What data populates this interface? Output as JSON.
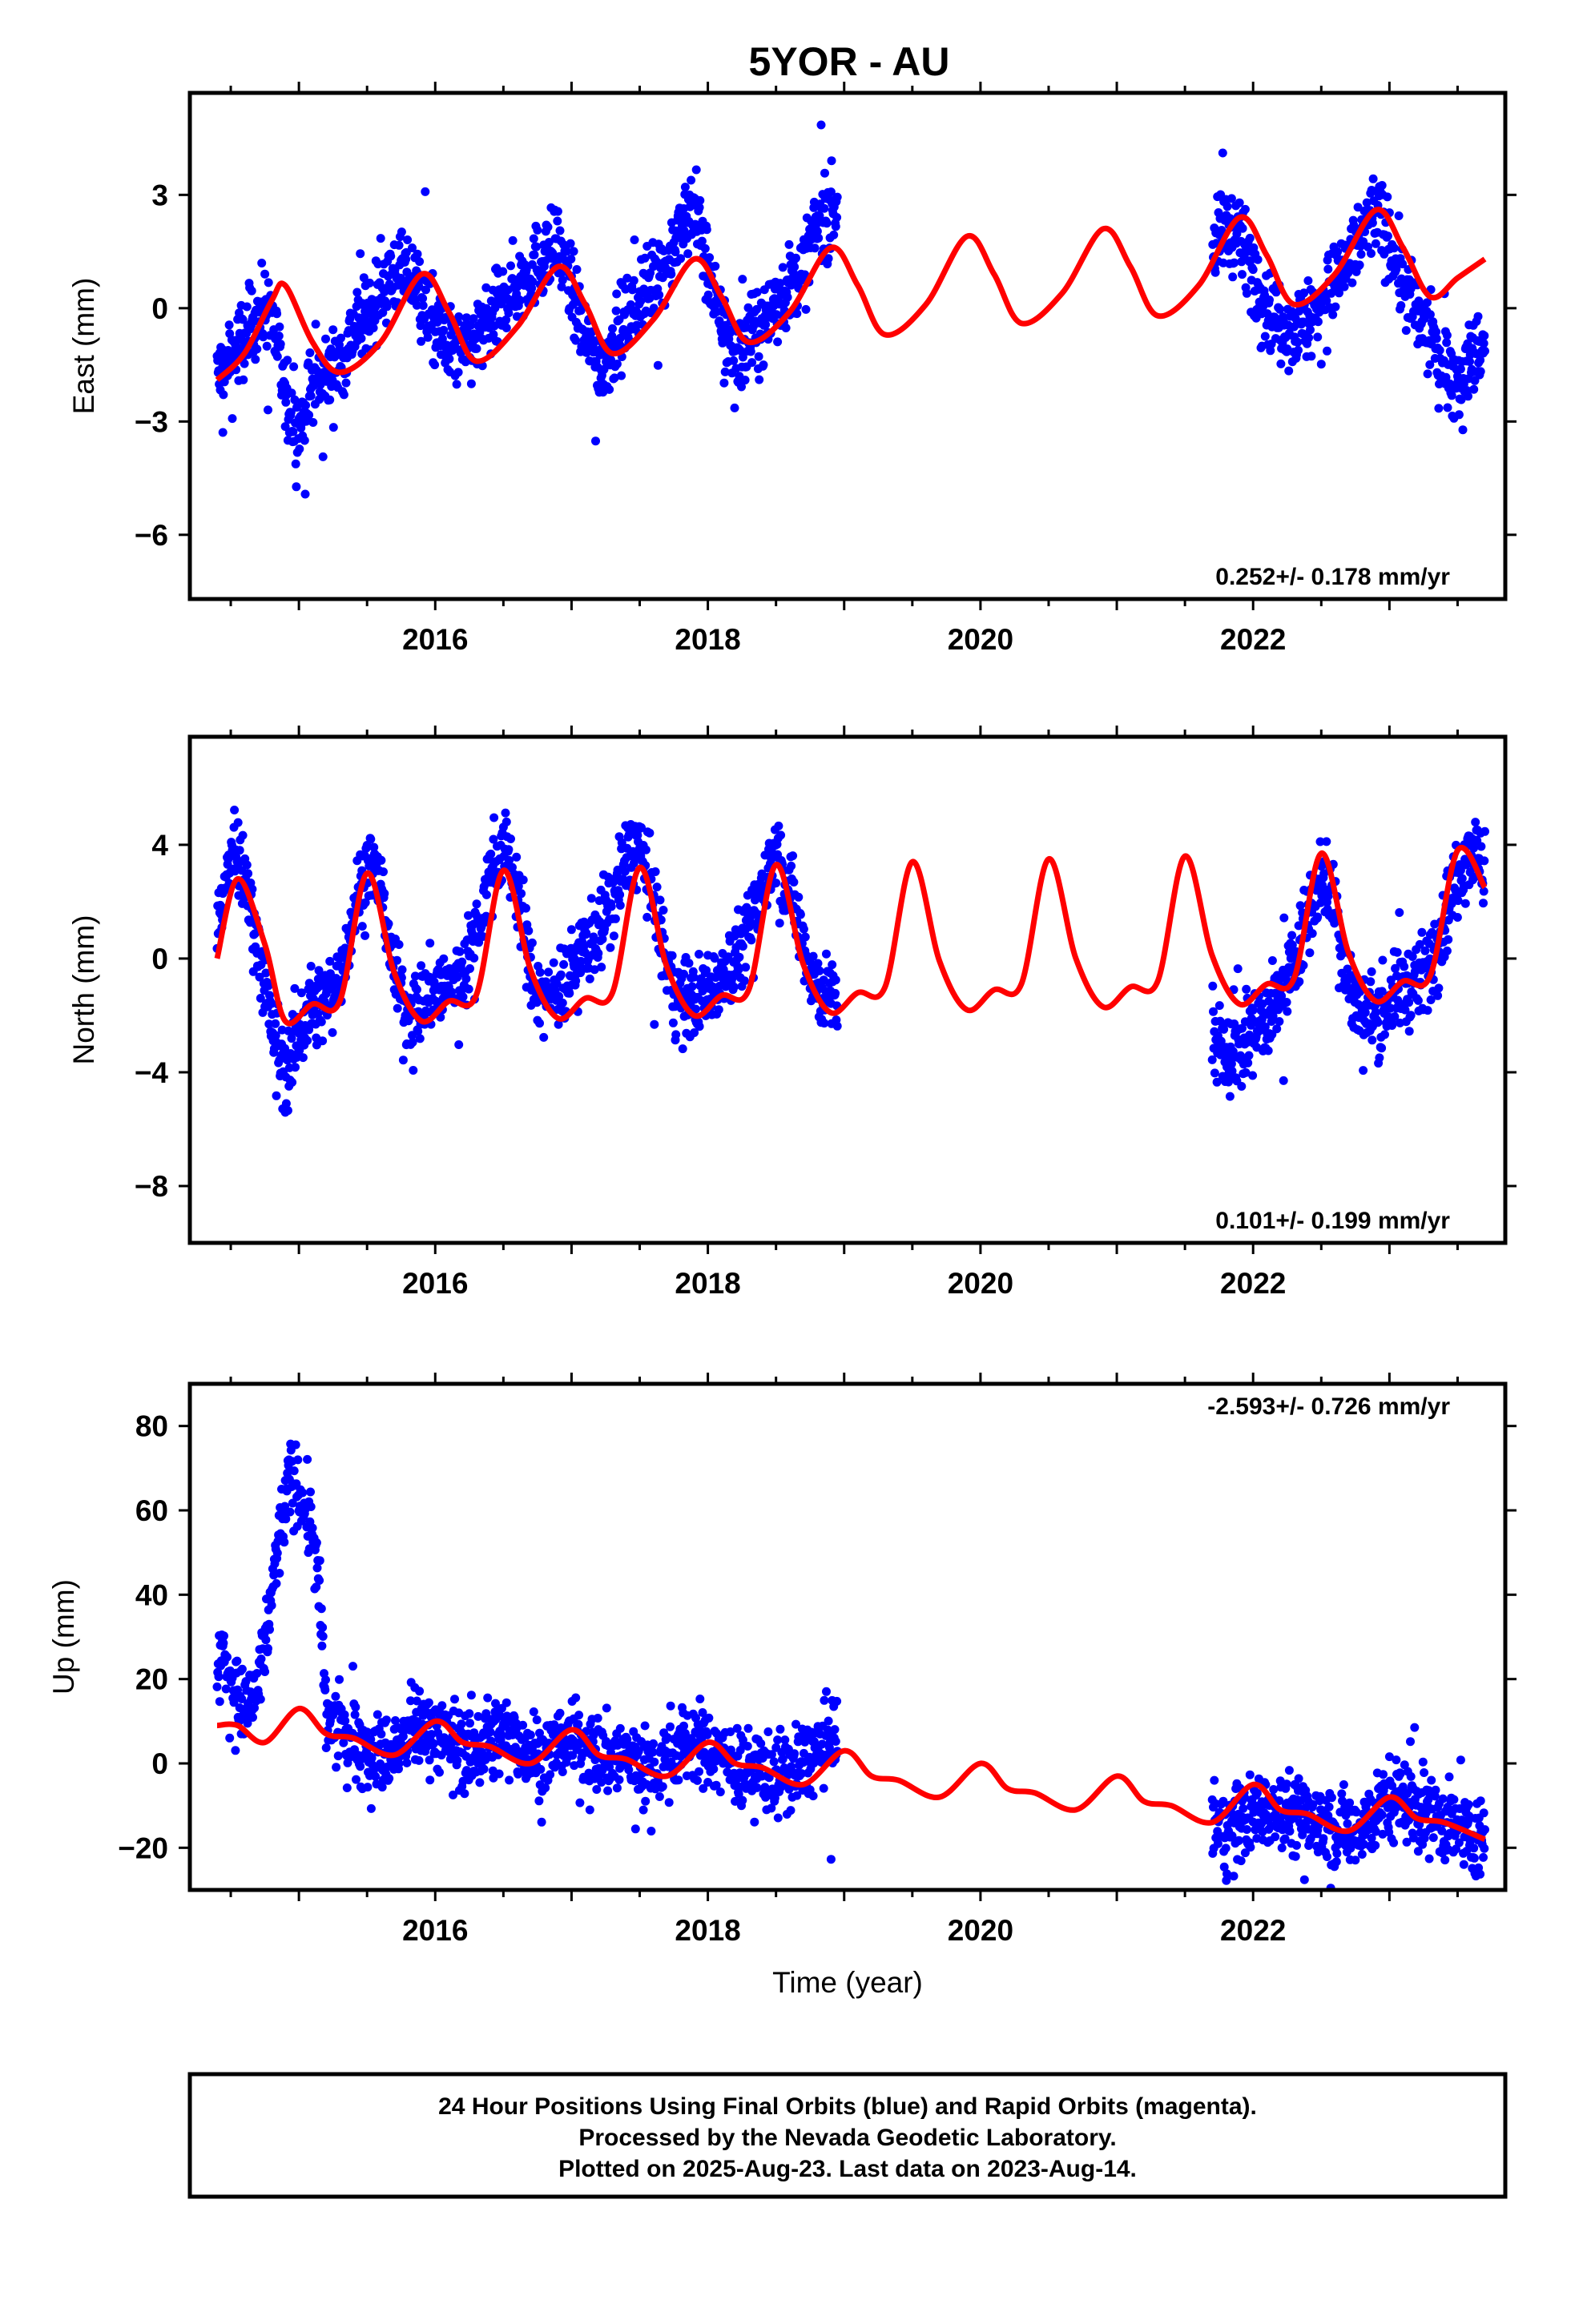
{
  "figure": {
    "title": "5YOR - AU",
    "caption": [
      "24 Hour Positions Using Final Orbits (blue) and Rapid Orbits (magenta).",
      "Processed by the Nevada Geodetic Laboratory.",
      "Plotted on 2025-Aug-23. Last data on 2023-Aug-14."
    ]
  },
  "chart_data": [
    {
      "type": "scatter",
      "component": "East",
      "ylabel": "East (mm)",
      "xlabel": "",
      "rate_text": "0.252+/- 0.178 mm/yr",
      "rate_position": "bottom-right",
      "xlim": [
        2014.2,
        2023.85
      ],
      "ylim": [
        -7.7,
        5.7
      ],
      "x_ticks": [
        2016,
        2018,
        2020,
        2022
      ],
      "y_ticks": [
        -6,
        -3,
        0,
        3
      ],
      "grid": false,
      "series": [
        {
          "role": "data",
          "color": "#0000ff",
          "segments": [
            {
              "x": [
                2014.4,
                2014.5,
                2014.6,
                2014.7,
                2014.8,
                2014.9,
                2015.0,
                2015.1,
                2015.2,
                2015.3,
                2015.4,
                2015.5,
                2015.6,
                2015.7,
                2015.8,
                2015.9,
                2016.0,
                2016.1,
                2016.2,
                2016.3,
                2016.4,
                2016.5,
                2016.6,
                2016.7,
                2016.8,
                2016.9,
                2017.0,
                2017.1,
                2017.2,
                2017.3,
                2017.4,
                2017.5,
                2017.6,
                2017.7,
                2017.8,
                2017.9,
                2018.0,
                2018.1,
                2018.2,
                2018.3,
                2018.4,
                2018.5,
                2018.6,
                2018.7,
                2018.8,
                2018.95
              ],
              "y": [
                -1.8,
                -1.3,
                -0.8,
                -0.1,
                0.0,
                -2.5,
                -3.2,
                -2.0,
                -1.8,
                -1.5,
                -0.6,
                -0.2,
                0.5,
                0.9,
                0.9,
                0.3,
                -0.5,
                -1.0,
                -1.2,
                -0.8,
                -0.4,
                0.2,
                0.6,
                1.0,
                1.4,
                1.6,
                0.5,
                -0.8,
                -1.5,
                -1.0,
                -0.4,
                0.2,
                0.7,
                1.2,
                2.0,
                2.8,
                1.0,
                -0.5,
                -1.2,
                -0.8,
                -0.5,
                0.2,
                0.6,
                1.0,
                2.2,
                2.8
              ]
            },
            {
              "x": [
                2021.7,
                2021.8,
                2021.9,
                2022.0,
                2022.1,
                2022.2,
                2022.3,
                2022.4,
                2022.5,
                2022.6,
                2022.7,
                2022.8,
                2022.9,
                2023.0,
                2023.1,
                2023.2,
                2023.3,
                2023.4,
                2023.5,
                2023.6,
                2023.7
              ],
              "y": [
                1.5,
                2.2,
                1.8,
                1.0,
                0.2,
                -0.3,
                -0.5,
                -0.4,
                0.2,
                0.6,
                1.2,
                2.0,
                2.6,
                1.8,
                0.6,
                -0.2,
                -0.8,
                -1.5,
                -1.8,
                -1.4,
                -0.8
              ]
            }
          ]
        },
        {
          "role": "model",
          "color": "#ff0000",
          "x": [
            2014.4,
            2014.6,
            2014.8,
            2014.9,
            2015.1,
            2015.3,
            2015.6,
            2015.9,
            2016.1,
            2016.3,
            2016.6,
            2016.9,
            2017.1,
            2017.3,
            2017.6,
            2017.9,
            2018.1,
            2018.3,
            2018.6,
            2018.9,
            2019.1,
            2019.3,
            2019.6,
            2019.9,
            2020.1,
            2020.3,
            2020.6,
            2020.9,
            2021.1,
            2021.3,
            2021.6,
            2021.9,
            2022.1,
            2022.3,
            2022.6,
            2022.9,
            2023.1,
            2023.3,
            2023.5,
            2023.7
          ],
          "y": [
            -1.9,
            -1.2,
            0.2,
            0.6,
            -0.9,
            -1.7,
            -0.9,
            0.9,
            -0.1,
            -1.4,
            -0.5,
            1.1,
            0.1,
            -1.2,
            -0.3,
            1.3,
            0.3,
            -0.9,
            -0.1,
            1.6,
            0.6,
            -0.7,
            0.1,
            1.9,
            0.9,
            -0.4,
            0.4,
            2.1,
            1.1,
            -0.2,
            0.6,
            2.4,
            1.4,
            0.1,
            0.9,
            2.6,
            1.6,
            0.3,
            0.8,
            1.3
          ]
        }
      ]
    },
    {
      "type": "scatter",
      "component": "North",
      "ylabel": "North (mm)",
      "xlabel": "",
      "rate_text": "0.101+/- 0.199 mm/yr",
      "rate_position": "bottom-right",
      "xlim": [
        2014.2,
        2023.85
      ],
      "ylim": [
        -10.0,
        7.8
      ],
      "x_ticks": [
        2016,
        2018,
        2020,
        2022
      ],
      "y_ticks": [
        -8,
        -4,
        0,
        4
      ],
      "grid": false,
      "series": [
        {
          "role": "data",
          "color": "#0000ff",
          "segments": [
            {
              "x": [
                2014.4,
                2014.5,
                2014.6,
                2014.7,
                2014.8,
                2014.9,
                2015.0,
                2015.1,
                2015.2,
                2015.3,
                2015.4,
                2015.5,
                2015.6,
                2015.7,
                2015.8,
                2015.9,
                2016.0,
                2016.1,
                2016.2,
                2016.3,
                2016.4,
                2016.5,
                2016.6,
                2016.7,
                2016.8,
                2016.9,
                2017.0,
                2017.1,
                2017.2,
                2017.3,
                2017.4,
                2017.5,
                2017.6,
                2017.7,
                2017.8,
                2017.9,
                2018.0,
                2018.1,
                2018.2,
                2018.3,
                2018.4,
                2018.5,
                2018.6,
                2018.7,
                2018.8,
                2018.95
              ],
              "y": [
                1.0,
                3.5,
                3.0,
                0.5,
                -2.5,
                -4.0,
                -2.5,
                -1.8,
                -1.5,
                -0.5,
                1.5,
                3.5,
                2.5,
                -0.5,
                -2.0,
                -1.5,
                -1.0,
                -1.0,
                -0.5,
                1.0,
                3.0,
                4.0,
                2.5,
                -0.5,
                -1.5,
                -1.0,
                -0.5,
                0.5,
                1.0,
                2.0,
                3.5,
                4.0,
                2.0,
                -0.5,
                -1.5,
                -1.5,
                -1.0,
                -0.5,
                0.0,
                1.0,
                2.5,
                3.8,
                2.5,
                0.5,
                -1.0,
                -1.5
              ]
            },
            {
              "x": [
                2021.7,
                2021.8,
                2021.9,
                2022.0,
                2022.1,
                2022.2,
                2022.3,
                2022.4,
                2022.5,
                2022.6,
                2022.7,
                2022.8,
                2022.9,
                2023.0,
                2023.1,
                2023.2,
                2023.3,
                2023.4,
                2023.5,
                2023.6,
                2023.7
              ],
              "y": [
                -2.5,
                -3.5,
                -3.0,
                -2.5,
                -2.0,
                -1.5,
                0.0,
                1.5,
                3.0,
                2.0,
                -1.0,
                -2.0,
                -2.0,
                -1.5,
                -1.0,
                -1.0,
                0.0,
                1.5,
                3.0,
                4.0,
                3.0
              ]
            }
          ]
        },
        {
          "role": "model",
          "color": "#ff0000",
          "x": [
            2014.4,
            2014.55,
            2014.75,
            2014.9,
            2015.1,
            2015.3,
            2015.5,
            2015.7,
            2015.9,
            2016.1,
            2016.3,
            2016.5,
            2016.7,
            2016.9,
            2017.1,
            2017.3,
            2017.5,
            2017.7,
            2017.9,
            2018.1,
            2018.3,
            2018.5,
            2018.7,
            2018.9,
            2019.1,
            2019.3,
            2019.5,
            2019.7,
            2019.9,
            2020.1,
            2020.3,
            2020.5,
            2020.7,
            2020.9,
            2021.1,
            2021.3,
            2021.5,
            2021.7,
            2021.9,
            2022.1,
            2022.3,
            2022.5,
            2022.7,
            2022.9,
            2023.1,
            2023.3,
            2023.5,
            2023.7
          ],
          "y": [
            0.0,
            2.8,
            0.5,
            -2.2,
            -1.6,
            -1.5,
            3.0,
            -0.5,
            -2.2,
            -1.5,
            -1.3,
            3.1,
            -0.4,
            -2.1,
            -1.4,
            -1.2,
            3.2,
            -0.3,
            -2.0,
            -1.3,
            -1.1,
            3.3,
            -0.2,
            -1.9,
            -1.2,
            -1.0,
            3.4,
            -0.1,
            -1.8,
            -1.1,
            -0.9,
            3.5,
            0.0,
            -1.7,
            -1.0,
            -0.8,
            3.6,
            0.1,
            -1.6,
            -0.9,
            -0.7,
            3.7,
            0.2,
            -1.5,
            -0.8,
            -0.6,
            3.8,
            2.5
          ]
        }
      ]
    },
    {
      "type": "scatter",
      "component": "Up",
      "ylabel": "Up (mm)",
      "xlabel": "Time (year)",
      "rate_text": "-2.593+/- 0.726 mm/yr",
      "rate_position": "top-right",
      "xlim": [
        2014.2,
        2023.85
      ],
      "ylim": [
        -30,
        90
      ],
      "x_ticks": [
        2016,
        2018,
        2020,
        2022
      ],
      "y_ticks": [
        -20,
        0,
        20,
        40,
        60,
        80
      ],
      "grid": false,
      "series": [
        {
          "role": "data",
          "color": "#0000ff",
          "segments": [
            {
              "x": [
                2014.4,
                2014.45,
                2014.5,
                2014.55,
                2014.6,
                2014.65,
                2014.7,
                2014.75,
                2014.8,
                2014.85,
                2014.9,
                2014.95,
                2015.0,
                2015.05,
                2015.1,
                2015.15,
                2015.2,
                2015.3,
                2015.4,
                2015.5,
                2015.6,
                2015.7,
                2015.8,
                2015.9,
                2016.0,
                2016.1,
                2016.2,
                2016.3,
                2016.4,
                2016.5,
                2016.6,
                2016.7,
                2016.8,
                2016.9,
                2017.0,
                2017.1,
                2017.2,
                2017.3,
                2017.4,
                2017.5,
                2017.6,
                2017.7,
                2017.8,
                2017.9,
                2018.0,
                2018.1,
                2018.2,
                2018.3,
                2018.4,
                2018.5,
                2018.6,
                2018.7,
                2018.8,
                2018.95
              ],
              "y": [
                22,
                27,
                20,
                15,
                12,
                14,
                18,
                28,
                40,
                52,
                62,
                68,
                65,
                60,
                55,
                40,
                10,
                8,
                6,
                4,
                2,
                3,
                6,
                9,
                8,
                5,
                4,
                3,
                5,
                7,
                6,
                3,
                2,
                4,
                6,
                4,
                2,
                1,
                2,
                0,
                -1,
                2,
                4,
                5,
                3,
                2,
                0,
                -2,
                -1,
                -3,
                -2,
                0,
                3,
                6
              ]
            },
            {
              "x": [
                2021.7,
                2021.8,
                2021.9,
                2022.0,
                2022.1,
                2022.2,
                2022.3,
                2022.4,
                2022.5,
                2022.6,
                2022.7,
                2022.8,
                2022.9,
                2023.0,
                2023.1,
                2023.2,
                2023.3,
                2023.4,
                2023.5,
                2023.6,
                2023.7
              ],
              "y": [
                -14,
                -16,
                -15,
                -12,
                -10,
                -11,
                -12,
                -13,
                -14,
                -15,
                -16,
                -14,
                -12,
                -9,
                -8,
                -10,
                -12,
                -14,
                -16,
                -17,
                -18
              ]
            }
          ]
        },
        {
          "role": "model",
          "color": "#ff0000",
          "x": [
            2014.4,
            2014.55,
            2014.75,
            2015.0,
            2015.2,
            2015.4,
            2015.7,
            2016.0,
            2016.2,
            2016.4,
            2016.7,
            2017.0,
            2017.2,
            2017.4,
            2017.7,
            2018.0,
            2018.2,
            2018.4,
            2018.7,
            2019.0,
            2019.2,
            2019.4,
            2019.7,
            2020.0,
            2020.2,
            2020.4,
            2020.7,
            2021.0,
            2021.2,
            2021.4,
            2021.7,
            2022.0,
            2022.2,
            2022.4,
            2022.7,
            2023.0,
            2023.2,
            2023.4,
            2023.7
          ],
          "y": [
            9,
            9,
            5,
            13,
            7,
            6,
            2,
            10,
            5,
            4,
            0,
            8,
            2,
            1,
            -3,
            5,
            0,
            -1,
            -5,
            3,
            -3,
            -4,
            -8,
            0,
            -6,
            -7,
            -11,
            -3,
            -9,
            -10,
            -14,
            -5,
            -11,
            -12,
            -16,
            -8,
            -13,
            -14,
            -18
          ]
        }
      ]
    }
  ]
}
